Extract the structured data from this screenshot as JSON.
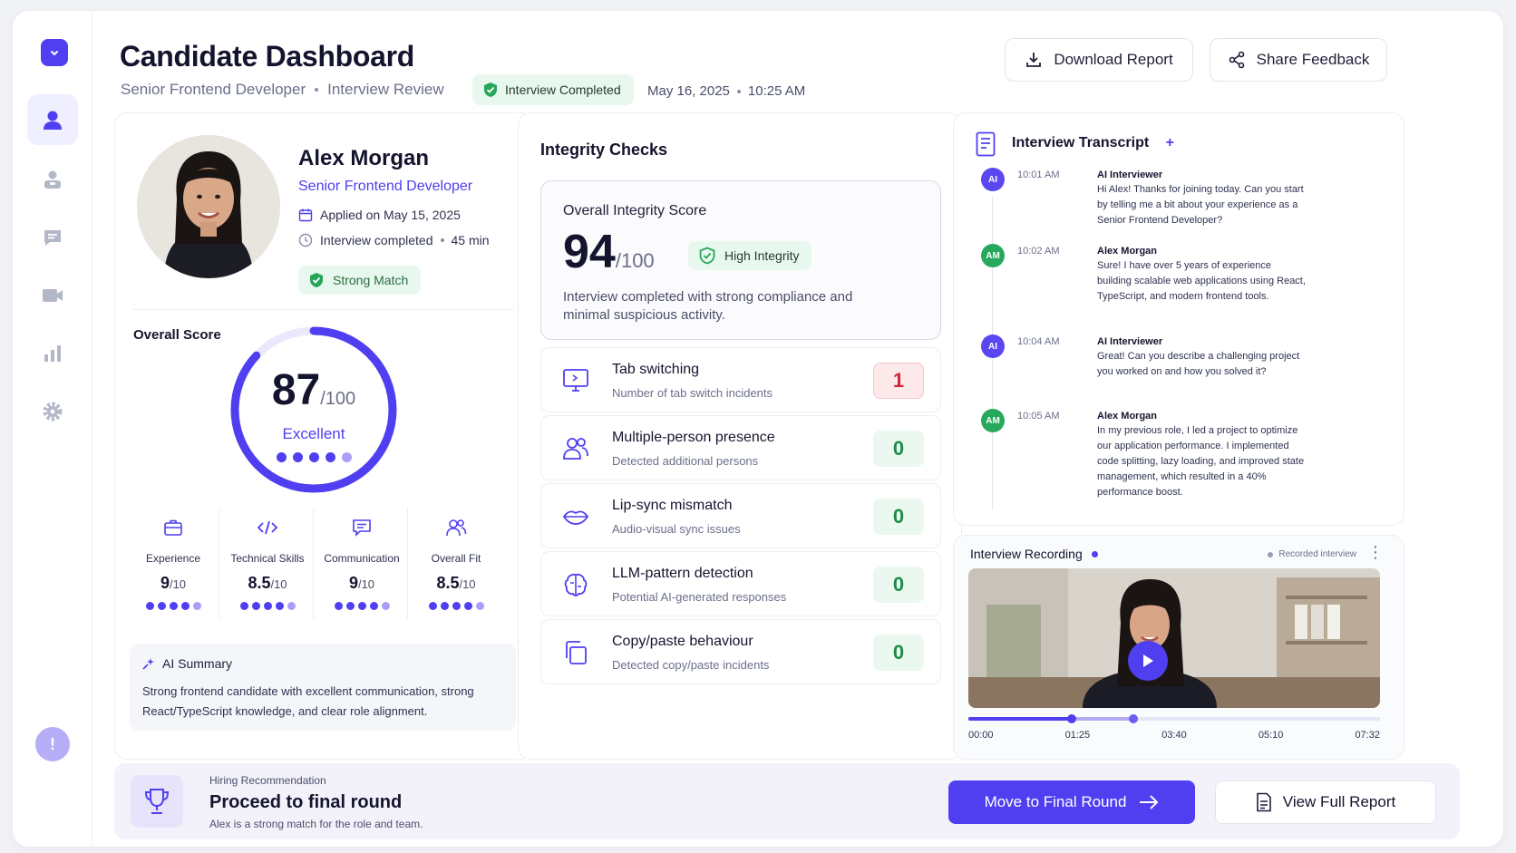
{
  "header": {
    "title": "Candidate Dashboard",
    "role": "Senior Frontend Developer",
    "section": "Interview Review",
    "status_badge": "Interview Completed",
    "date": "May 16, 2025",
    "time": "10:25 AM",
    "download_label": "Download Report",
    "share_label": "Share Feedback"
  },
  "sidebar": {
    "items": [
      "logo-icon",
      "user-icon",
      "user-badge-icon",
      "chat-icon",
      "video-icon",
      "bar-chart-icon",
      "gear-icon",
      "alert-icon"
    ],
    "alert_glyph": "!"
  },
  "candidate": {
    "name": "Alex Morgan",
    "role": "Senior Frontend Developer",
    "applied": "Applied on May 15, 2025",
    "interview": "Interview completed",
    "duration": "45 min",
    "match": "Strong Match"
  },
  "overall": {
    "label": "Overall Score",
    "score": "87",
    "out_of": "/100",
    "score_fraction": 0.87,
    "rating": "Excellent",
    "rating_dots_filled": 4,
    "rating_dots_total": 5
  },
  "metrics": [
    {
      "label": "Experience",
      "value": "9",
      "out_of": "/10",
      "dots_filled": 4,
      "dots_total": 5
    },
    {
      "label": "Technical Skills",
      "value": "8.5",
      "out_of": "/10",
      "dots_filled": 4,
      "dots_total": 5
    },
    {
      "label": "Communication",
      "value": "9",
      "out_of": "/10",
      "dots_filled": 4,
      "dots_total": 5
    },
    {
      "label": "Overall Fit",
      "value": "8.5",
      "out_of": "/10",
      "dots_filled": 4,
      "dots_total": 5
    }
  ],
  "ai_summary": {
    "title": "AI Summary",
    "text": "Strong frontend candidate with excellent communication, strong React/TypeScript knowledge, and clear role alignment."
  },
  "integrity": {
    "title": "Integrity Checks",
    "score_label": "Overall Integrity Score",
    "score": "94",
    "out_of": "/100",
    "badge": "High Integrity",
    "description": "Interview completed with strong compliance and minimal suspicious activity.",
    "checks": [
      {
        "title": "Tab switching",
        "subtitle": "Number of tab switch incidents",
        "count": "1",
        "status": "warn"
      },
      {
        "title": "Multiple-person presence",
        "subtitle": "Detected additional persons",
        "count": "0",
        "status": "ok"
      },
      {
        "title": "Lip-sync mismatch",
        "subtitle": "Audio-visual sync issues",
        "count": "0",
        "status": "ok"
      },
      {
        "title": "LLM-pattern detection",
        "subtitle": "Potential AI-generated responses",
        "count": "0",
        "status": "ok"
      },
      {
        "title": "Copy/paste behaviour",
        "subtitle": "Detected copy/paste incidents",
        "count": "0",
        "status": "ok"
      }
    ]
  },
  "transcript": {
    "title": "Interview Transcript",
    "add_glyph": "+",
    "entries": [
      {
        "initials": "AI",
        "time": "10:01 AM",
        "speaker": "AI Interviewer",
        "text": "Hi Alex! Thanks for joining today. Can you start by telling me a bit about your experience as a Senior Frontend Developer?"
      },
      {
        "initials": "AM",
        "time": "10:02 AM",
        "speaker": "Alex Morgan",
        "text": "Sure! I have over 5 years of experience building scalable web applications using React, TypeScript, and modern frontend tools."
      },
      {
        "initials": "AI",
        "time": "10:04 AM",
        "speaker": "AI Interviewer",
        "text": "Great! Can you describe a challenging project you worked on and how you solved it?"
      },
      {
        "initials": "AM",
        "time": "10:05 AM",
        "speaker": "Alex Morgan",
        "text": "In my previous role, I led a project to optimize our application performance. I implemented code splitting, lazy loading, and improved state management, which resulted in a 40% performance boost."
      }
    ]
  },
  "recording": {
    "title": "Interview Recording",
    "tag": "Recorded interview",
    "menu_glyph": "⋮",
    "timestamps": [
      "00:00",
      "01:25",
      "03:40",
      "05:10",
      "07:32"
    ],
    "played_fraction": 0.25,
    "buffered_fraction": 0.4
  },
  "recommendation": {
    "label": "Hiring Recommendation",
    "decision": "Proceed to final round",
    "note": "Alex is a strong match for the role and team.",
    "primary_label": "Move to Final Round",
    "secondary_label": "View Full Report"
  },
  "colors": {
    "accent": "#4f3ff0",
    "success": "#1e8a4a",
    "warning": "#d2283c"
  }
}
